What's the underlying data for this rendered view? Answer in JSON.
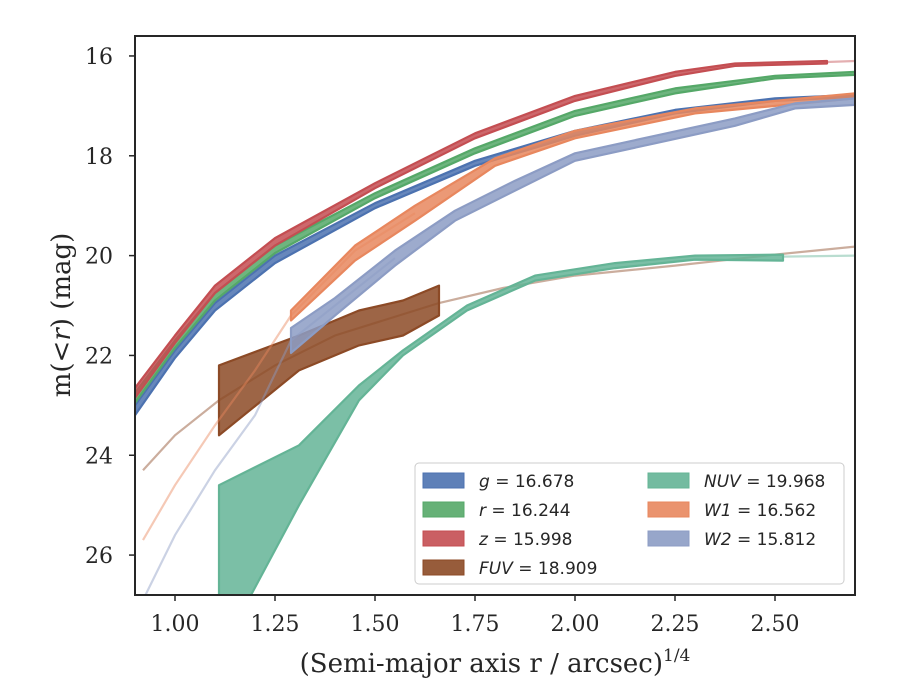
{
  "chart_data": {
    "type": "area",
    "xlabel": "(Semi-major axis r / arcsec)",
    "xlabel_superscript": "1/4",
    "ylabel_parts": [
      "m(",
      "<",
      "r",
      ") (mag)"
    ],
    "xlim": [
      0.9,
      2.7
    ],
    "ylim": [
      26.8,
      15.6
    ],
    "y_inverted": true,
    "x_ticks": [
      1.0,
      1.25,
      1.5,
      1.75,
      2.0,
      2.25,
      2.5
    ],
    "x_tick_labels": [
      "1.00",
      "1.25",
      "1.50",
      "1.75",
      "2.00",
      "2.25",
      "2.50"
    ],
    "y_ticks": [
      16,
      18,
      20,
      22,
      24,
      26
    ],
    "y_tick_labels": [
      "16",
      "18",
      "20",
      "22",
      "24",
      "26"
    ],
    "legend_position": "bottom-right",
    "series": [
      {
        "name": "g = 16.678",
        "label_symbol": "g",
        "label_value": "16.678",
        "color": "#4C72B0",
        "band": [
          [
            0.9,
            23.2,
            23.0
          ],
          [
            1.0,
            22.05,
            21.9
          ],
          [
            1.1,
            21.1,
            20.95
          ],
          [
            1.25,
            20.15,
            20.0
          ],
          [
            1.5,
            19.05,
            18.95
          ],
          [
            1.75,
            18.2,
            18.1
          ],
          [
            2.0,
            17.6,
            17.5
          ],
          [
            2.25,
            17.15,
            17.08
          ],
          [
            2.5,
            16.9,
            16.85
          ],
          [
            2.7,
            16.82,
            16.78
          ]
        ],
        "faint": []
      },
      {
        "name": "r = 16.244",
        "label_symbol": "r",
        "label_value": "16.244",
        "color": "#55A868",
        "band": [
          [
            0.9,
            22.95,
            22.75
          ],
          [
            1.0,
            21.85,
            21.7
          ],
          [
            1.1,
            20.9,
            20.75
          ],
          [
            1.25,
            19.95,
            19.8
          ],
          [
            1.5,
            18.85,
            18.75
          ],
          [
            1.75,
            17.95,
            17.85
          ],
          [
            2.0,
            17.2,
            17.1
          ],
          [
            2.25,
            16.75,
            16.65
          ],
          [
            2.5,
            16.45,
            16.4
          ],
          [
            2.7,
            16.38,
            16.32
          ]
        ],
        "faint": []
      },
      {
        "name": "z = 15.998",
        "label_symbol": "z",
        "label_value": "15.998",
        "color": "#C44E52",
        "band": [
          [
            0.9,
            22.85,
            22.65
          ],
          [
            1.0,
            21.75,
            21.6
          ],
          [
            1.1,
            20.75,
            20.6
          ],
          [
            1.25,
            19.8,
            19.65
          ],
          [
            1.5,
            18.65,
            18.55
          ],
          [
            1.75,
            17.65,
            17.55
          ],
          [
            2.0,
            16.9,
            16.8
          ],
          [
            2.25,
            16.4,
            16.32
          ],
          [
            2.4,
            16.2,
            16.15
          ],
          [
            2.63,
            16.15,
            16.1
          ]
        ],
        "faint": [
          [
            2.63,
            16.12
          ],
          [
            2.7,
            16.1
          ]
        ]
      },
      {
        "name": "FUV = 18.909",
        "label_symbol": "FUV",
        "label_value": "18.909",
        "color": "#8C4A26",
        "band": [
          [
            1.11,
            23.6,
            22.2
          ],
          [
            1.31,
            22.3,
            21.6
          ],
          [
            1.46,
            21.8,
            21.1
          ],
          [
            1.57,
            21.6,
            20.9
          ],
          [
            1.66,
            21.2,
            20.6
          ]
        ],
        "faint": [
          [
            0.92,
            24.3
          ],
          [
            1.0,
            23.6
          ],
          [
            1.11,
            22.9
          ],
          [
            1.25,
            22.2
          ],
          [
            1.4,
            21.6
          ],
          [
            1.66,
            20.95
          ],
          [
            1.82,
            20.65
          ],
          [
            2.0,
            20.4
          ],
          [
            2.25,
            20.2
          ],
          [
            2.5,
            19.98
          ],
          [
            2.7,
            19.82
          ]
        ]
      },
      {
        "name": "NUV = 19.968",
        "label_symbol": "NUV",
        "label_value": "19.968",
        "color": "#64B496",
        "band": [
          [
            1.11,
            28.0,
            24.6
          ],
          [
            1.31,
            25.0,
            23.8
          ],
          [
            1.46,
            22.9,
            22.6
          ],
          [
            1.57,
            22.0,
            21.9
          ],
          [
            1.73,
            21.1,
            21.0
          ],
          [
            1.9,
            20.5,
            20.4
          ],
          [
            2.1,
            20.25,
            20.15
          ],
          [
            2.3,
            20.08,
            20.0
          ],
          [
            2.52,
            20.1,
            19.98
          ]
        ],
        "faint": [
          [
            2.52,
            20.02
          ],
          [
            2.7,
            20.0
          ]
        ]
      },
      {
        "name": "W1 = 16.562",
        "label_symbol": "W1",
        "label_value": "16.562",
        "color": "#E8875E",
        "band": [
          [
            1.29,
            21.3,
            21.1
          ],
          [
            1.45,
            20.1,
            19.8
          ],
          [
            1.6,
            19.3,
            19.0
          ],
          [
            1.8,
            18.2,
            18.05
          ],
          [
            2.0,
            17.65,
            17.5
          ],
          [
            2.3,
            17.15,
            17.05
          ],
          [
            2.7,
            16.85,
            16.75
          ]
        ],
        "faint": [
          [
            0.92,
            25.7
          ],
          [
            1.0,
            24.6
          ],
          [
            1.1,
            23.4
          ],
          [
            1.2,
            22.3
          ],
          [
            1.29,
            21.2
          ],
          [
            1.45,
            19.9
          ],
          [
            1.6,
            19.15
          ]
        ]
      },
      {
        "name": "W2 = 15.812",
        "label_symbol": "W2",
        "label_value": "15.812",
        "color": "#8C9CC4",
        "band": [
          [
            1.29,
            21.95,
            21.45
          ],
          [
            1.4,
            21.2,
            20.85
          ],
          [
            1.55,
            20.2,
            19.9
          ],
          [
            1.7,
            19.3,
            19.1
          ],
          [
            1.85,
            18.7,
            18.5
          ],
          [
            2.0,
            18.1,
            17.95
          ],
          [
            2.2,
            17.75,
            17.6
          ],
          [
            2.4,
            17.4,
            17.25
          ],
          [
            2.55,
            17.05,
            16.95
          ],
          [
            2.7,
            16.98,
            16.85
          ]
        ],
        "faint": [
          [
            0.92,
            26.9
          ],
          [
            1.0,
            25.6
          ],
          [
            1.1,
            24.3
          ],
          [
            1.2,
            23.2
          ],
          [
            1.29,
            21.7
          ],
          [
            1.4,
            21.0
          ],
          [
            1.55,
            20.05
          ]
        ]
      }
    ]
  }
}
